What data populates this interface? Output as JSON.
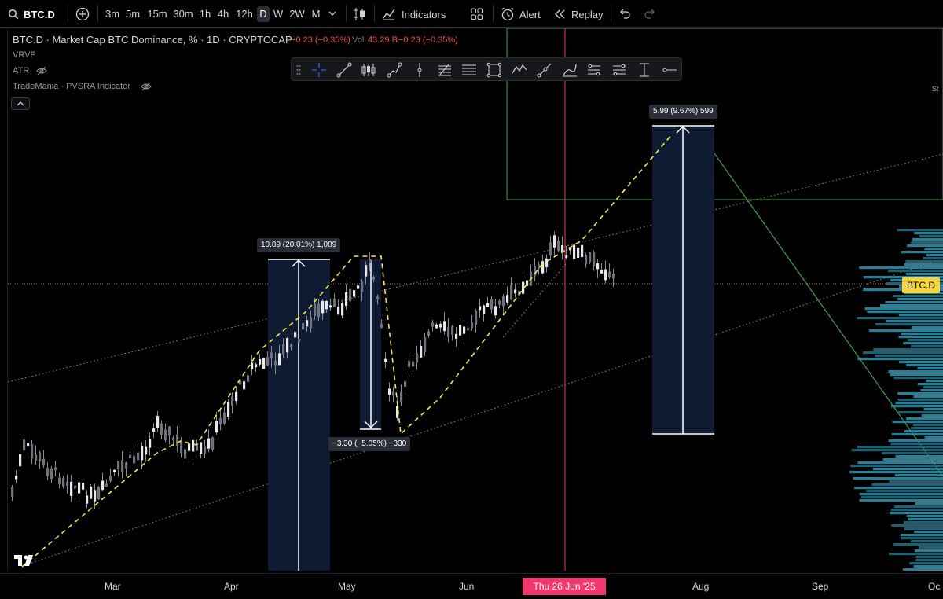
{
  "toolbar": {
    "symbol": "BTC.D",
    "timeframes": [
      "3m",
      "5m",
      "15m",
      "30m",
      "1h",
      "4h",
      "12h",
      "D",
      "W",
      "2W",
      "M"
    ],
    "active_timeframe": "D",
    "indicators_label": "Indicators",
    "alert_label": "Alert",
    "replay_label": "Replay"
  },
  "legend": {
    "title": "BTC.D · Market Cap BTC Dominance, % · 1D · CRYPTOCAP",
    "change": "−0.23 (−0.35%)",
    "vol_label": "Vol",
    "vol_value": "43.29 B",
    "vol_change": "−0.23 (−0.35%)",
    "indicators": [
      "VRVP",
      "ATR",
      "TradeMania · PVSRA Indicator"
    ]
  },
  "measurements": [
    {
      "label": "10.89 (20.01%) 1,089",
      "direction": "up"
    },
    {
      "label": "−3.30 (−5.05%) −330",
      "direction": "down"
    },
    {
      "label": "5.99 (9.67%) 599",
      "direction": "up"
    }
  ],
  "price_axis": {
    "symbol_label": "BTC.D",
    "clipped_text": "St"
  },
  "time_axis": {
    "labels": [
      "Mar",
      "Apr",
      "May",
      "Jun",
      "Aug",
      "Sep",
      "Oc"
    ],
    "crosshair_label": "Thu 26 Jun '25"
  },
  "colors": {
    "background": "#000000",
    "crosshair": "#f2366e",
    "price_label": "#f7d63b",
    "zigzag": "#f7e64f",
    "measure_box": "#0f1a33",
    "volume_profile": "#2a8fa8",
    "trend_green": "#3fa34d"
  },
  "icons": [
    "search-icon",
    "add-symbol-icon",
    "chevron-down-icon",
    "candles-icon",
    "indicators-icon",
    "templates-icon",
    "alert-icon",
    "replay-icon",
    "undo-icon",
    "redo-icon",
    "eye-off-icon"
  ]
}
